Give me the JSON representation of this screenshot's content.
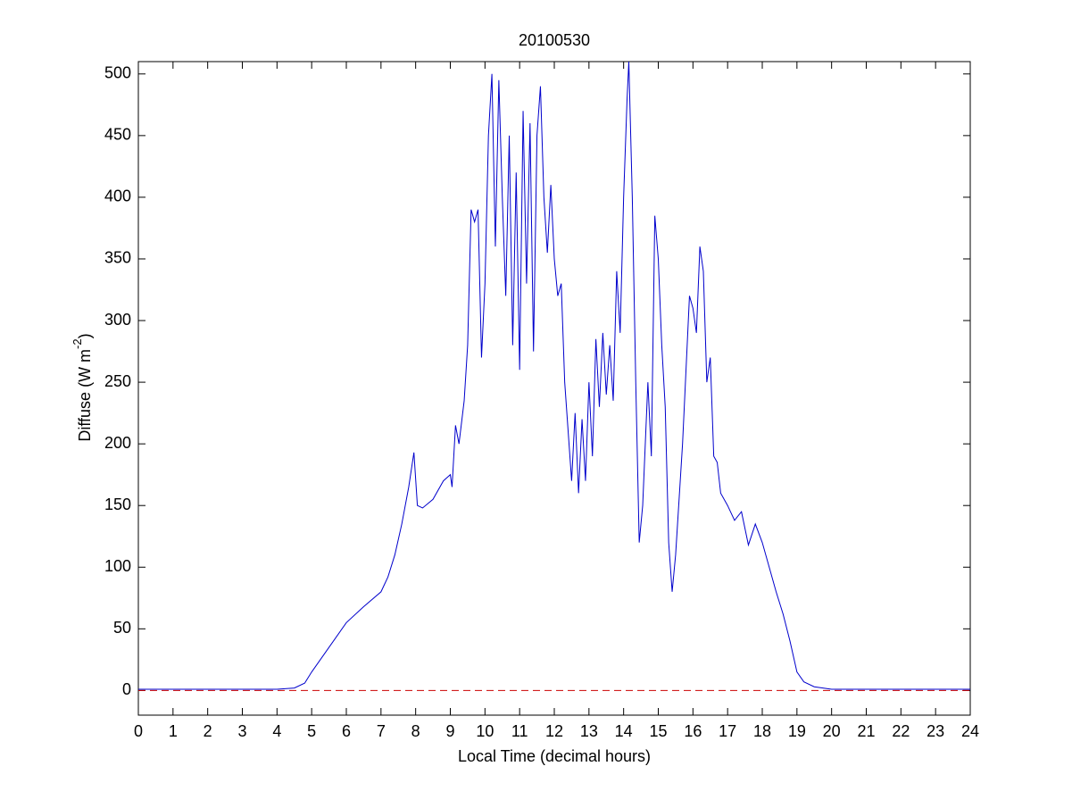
{
  "chart_data": {
    "type": "line",
    "title": "20100530",
    "xlabel": "Local Time (decimal hours)",
    "ylabel": {
      "text": "Diffuse (W m",
      "superscript": "-2",
      "suffix": ")"
    },
    "xlim": [
      0,
      24
    ],
    "ylim": [
      -20,
      510
    ],
    "xticks": [
      0,
      1,
      2,
      3,
      4,
      5,
      6,
      7,
      8,
      9,
      10,
      11,
      12,
      13,
      14,
      15,
      16,
      17,
      18,
      19,
      20,
      21,
      22,
      23,
      24
    ],
    "yticks": [
      0,
      50,
      100,
      150,
      200,
      250,
      300,
      350,
      400,
      450,
      500
    ],
    "reference_line": {
      "y": 0,
      "color": "#cc0000",
      "dashed": true
    },
    "series": [
      {
        "color": "#0000cc",
        "x": [
          0,
          1,
          2,
          3,
          4,
          4.5,
          4.8,
          5,
          5.5,
          6,
          6.5,
          7,
          7.2,
          7.4,
          7.6,
          7.8,
          7.95,
          8.05,
          8.2,
          8.5,
          8.8,
          9.0,
          9.05,
          9.15,
          9.25,
          9.4,
          9.5,
          9.6,
          9.7,
          9.8,
          9.9,
          10.0,
          10.1,
          10.2,
          10.3,
          10.4,
          10.5,
          10.6,
          10.7,
          10.8,
          10.9,
          11.0,
          11.1,
          11.2,
          11.3,
          11.4,
          11.5,
          11.6,
          11.7,
          11.8,
          11.9,
          12.0,
          12.1,
          12.2,
          12.3,
          12.4,
          12.5,
          12.6,
          12.7,
          12.8,
          12.9,
          13.0,
          13.1,
          13.2,
          13.3,
          13.4,
          13.5,
          13.6,
          13.7,
          13.8,
          13.9,
          14.0,
          14.1,
          14.15,
          14.25,
          14.35,
          14.45,
          14.55,
          14.7,
          14.8,
          14.9,
          15.0,
          15.1,
          15.2,
          15.3,
          15.4,
          15.5,
          15.7,
          15.8,
          15.9,
          16.0,
          16.1,
          16.2,
          16.3,
          16.4,
          16.5,
          16.6,
          16.7,
          16.8,
          17.0,
          17.2,
          17.4,
          17.6,
          17.8,
          18.0,
          18.2,
          18.4,
          18.6,
          18.8,
          19.0,
          19.2,
          19.5,
          20,
          21,
          22,
          23,
          24
        ],
        "values": [
          1,
          1,
          1,
          1,
          1,
          2,
          6,
          15,
          35,
          55,
          68,
          80,
          92,
          110,
          135,
          165,
          193,
          150,
          148,
          155,
          170,
          175,
          165,
          215,
          200,
          235,
          280,
          390,
          380,
          390,
          270,
          330,
          450,
          500,
          360,
          495,
          400,
          320,
          450,
          280,
          420,
          260,
          470,
          330,
          460,
          275,
          450,
          490,
          400,
          355,
          410,
          350,
          320,
          330,
          250,
          210,
          170,
          225,
          160,
          220,
          170,
          250,
          190,
          285,
          230,
          290,
          240,
          280,
          235,
          340,
          290,
          400,
          480,
          510,
          400,
          250,
          120,
          150,
          250,
          190,
          385,
          350,
          280,
          230,
          120,
          80,
          110,
          200,
          260,
          320,
          310,
          290,
          360,
          340,
          250,
          270,
          190,
          185,
          160,
          150,
          138,
          145,
          118,
          135,
          120,
          100,
          80,
          62,
          40,
          15,
          7,
          3,
          1,
          1,
          1,
          1,
          1
        ]
      }
    ]
  }
}
